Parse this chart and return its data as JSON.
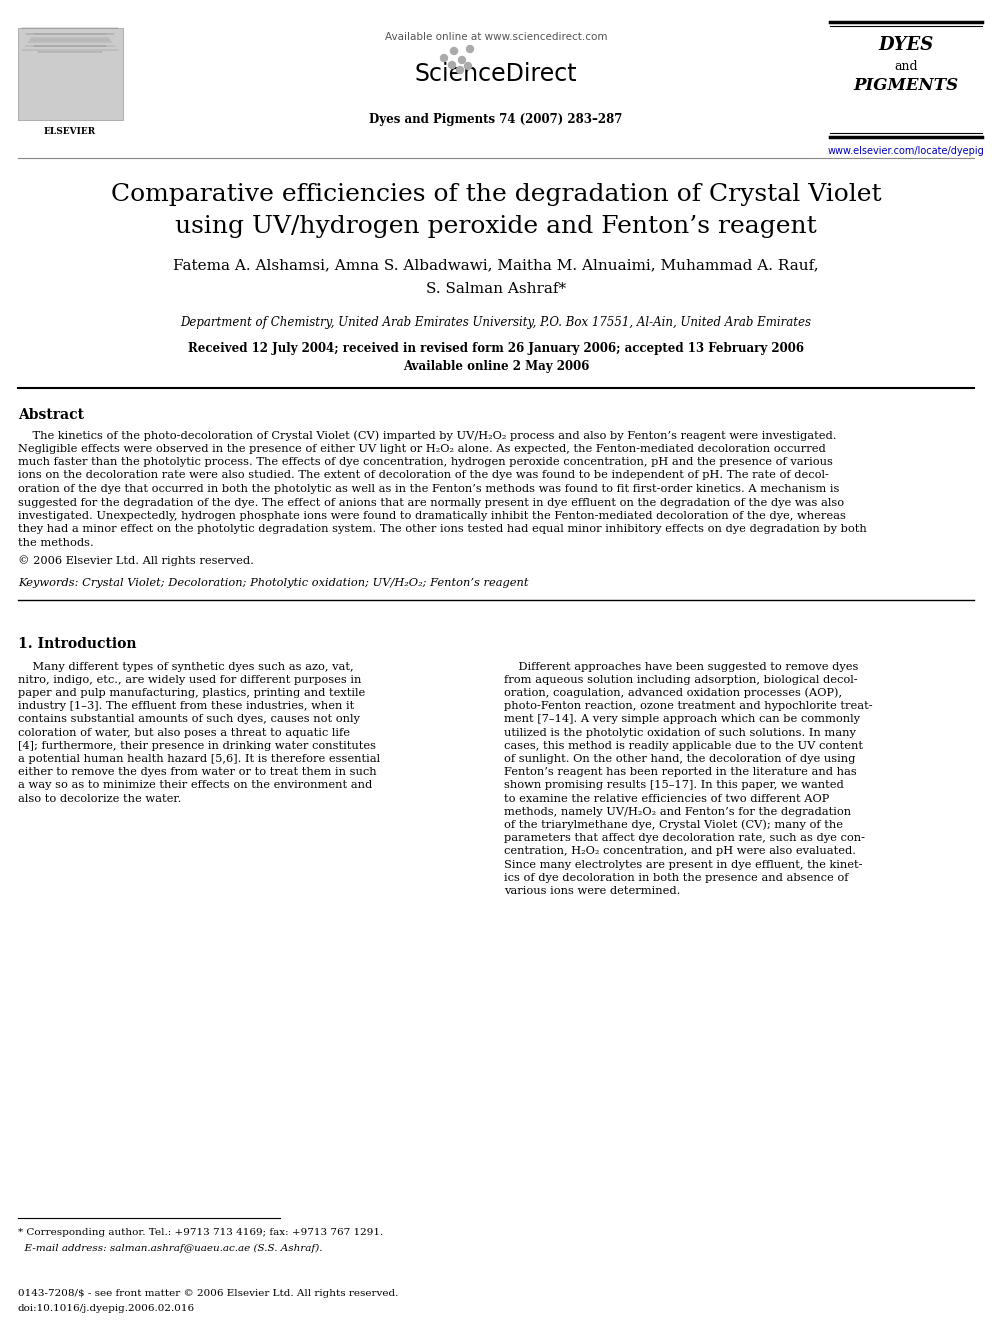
{
  "bg_color": "#ffffff",
  "header_online": "Available online at www.sciencedirect.com",
  "journal_info": "Dyes and Pigments 74 (2007) 283–287",
  "website": "www.elsevier.com/locate/dyepig",
  "title_line1": "Comparative efficiencies of the degradation of Crystal Violet",
  "title_line2": "using UV/hydrogen peroxide and Fenton’s reagent",
  "authors_line1": "Fatema A. Alshamsi, Amna S. Albadwawi, Maitha M. Alnuaimi, Muhammad A. Rauf,",
  "authors_line2": "S. Salman Ashraf*",
  "affiliation": "Department of Chemistry, United Arab Emirates University, P.O. Box 17551, Al-Ain, United Arab Emirates",
  "date_line1": "Received 12 July 2004; received in revised form 26 January 2006; accepted 13 February 2006",
  "date_line2": "Available online 2 May 2006",
  "abstract_label": "Abstract",
  "abstract_lines": [
    "    The kinetics of the photo-decoloration of Crystal Violet (CV) imparted by UV/H₂O₂ process and also by Fenton’s reagent were investigated.",
    "Negligible effects were observed in the presence of either UV light or H₂O₂ alone. As expected, the Fenton-mediated decoloration occurred",
    "much faster than the photolytic process. The effects of dye concentration, hydrogen peroxide concentration, pH and the presence of various",
    "ions on the decoloration rate were also studied. The extent of decoloration of the dye was found to be independent of pH. The rate of decol-",
    "oration of the dye that occurred in both the photolytic as well as in the Fenton’s methods was found to fit first-order kinetics. A mechanism is",
    "suggested for the degradation of the dye. The effect of anions that are normally present in dye effluent on the degradation of the dye was also",
    "investigated. Unexpectedly, hydrogen phosphate ions were found to dramatically inhibit the Fenton-mediated decoloration of the dye, whereas",
    "they had a minor effect on the photolytic degradation system. The other ions tested had equal minor inhibitory effects on dye degradation by both",
    "the methods."
  ],
  "copyright": "© 2006 Elsevier Ltd. All rights reserved.",
  "keywords": "Keywords: Crystal Violet; Decoloration; Photolytic oxidation; UV/H₂O₂; Fenton’s reagent",
  "intro_heading": "1. Introduction",
  "intro_left_lines": [
    "    Many different types of synthetic dyes such as azo, vat,",
    "nitro, indigo, etc., are widely used for different purposes in",
    "paper and pulp manufacturing, plastics, printing and textile",
    "industry [1–3]. The effluent from these industries, when it",
    "contains substantial amounts of such dyes, causes not only",
    "coloration of water, but also poses a threat to aquatic life",
    "[4]; furthermore, their presence in drinking water constitutes",
    "a potential human health hazard [5,6]. It is therefore essential",
    "either to remove the dyes from water or to treat them in such",
    "a way so as to minimize their effects on the environment and",
    "also to decolorize the water."
  ],
  "intro_right_lines": [
    "    Different approaches have been suggested to remove dyes",
    "from aqueous solution including adsorption, biological decol-",
    "oration, coagulation, advanced oxidation processes (AOP),",
    "photo-Fenton reaction, ozone treatment and hypochlorite treat-",
    "ment [7–14]. A very simple approach which can be commonly",
    "utilized is the photolytic oxidation of such solutions. In many",
    "cases, this method is readily applicable due to the UV content",
    "of sunlight. On the other hand, the decoloration of dye using",
    "Fenton’s reagent has been reported in the literature and has",
    "shown promising results [15–17]. In this paper, we wanted",
    "to examine the relative efficiencies of two different AOP",
    "methods, namely UV/H₂O₂ and Fenton’s for the degradation",
    "of the triarylmethane dye, Crystal Violet (CV); many of the",
    "parameters that affect dye decoloration rate, such as dye con-",
    "centration, H₂O₂ concentration, and pH were also evaluated.",
    "Since many electrolytes are present in dye effluent, the kinet-",
    "ics of dye decoloration in both the presence and absence of",
    "various ions were determined."
  ],
  "footnote_line1": "* Corresponding author. Tel.: +9713 713 4169; fax: +9713 767 1291.",
  "footnote_line2": "  E-mail address: salman.ashraf@uaeu.ac.ae (S.S. Ashraf).",
  "footer_line1": "0143-7208/$ - see front matter © 2006 Elsevier Ltd. All rights reserved.",
  "footer_line2": "doi:10.1016/j.dyepig.2006.02.016"
}
